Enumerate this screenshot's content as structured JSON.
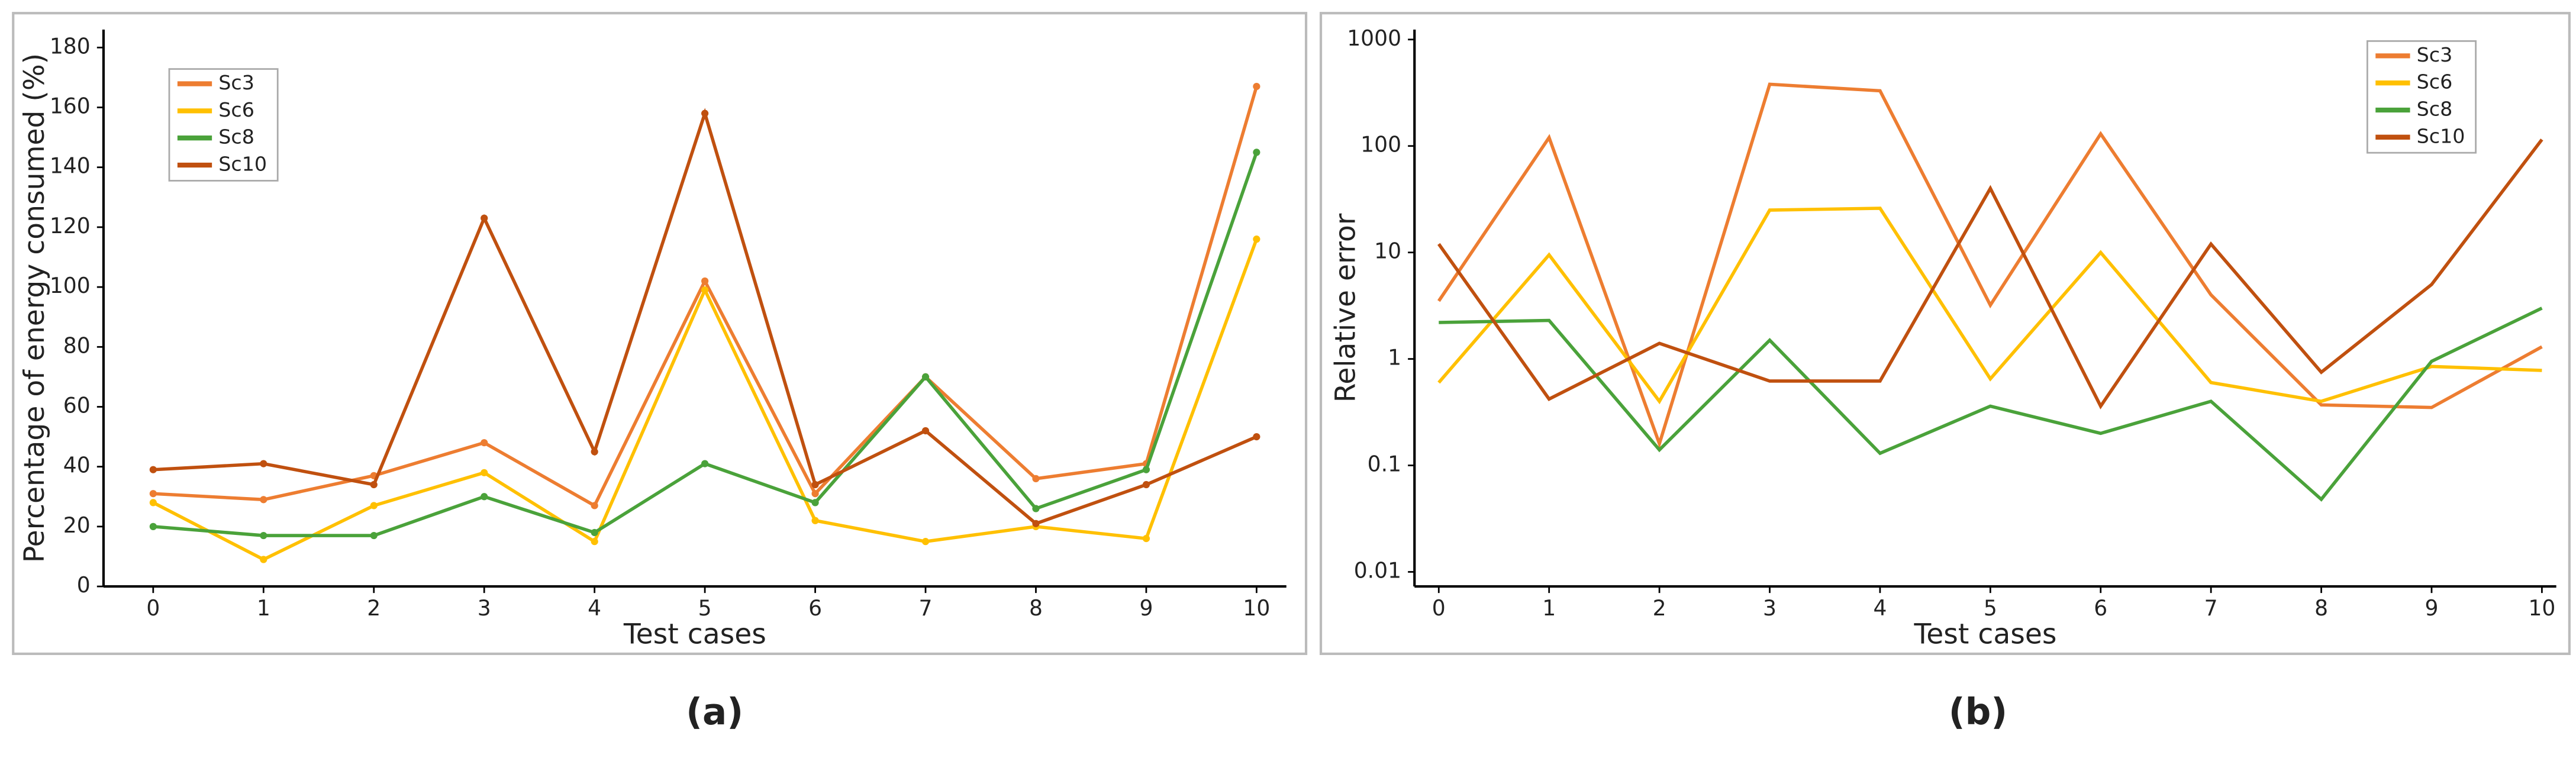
{
  "chart_data": [
    {
      "type": "line",
      "caption": "(a)",
      "x_label": "Test cases",
      "y_label": "Percentage of energy consumed (%)",
      "x": [
        0,
        1,
        2,
        3,
        4,
        5,
        6,
        7,
        8,
        9,
        10
      ],
      "xlim": [
        -0.45,
        10.27
      ],
      "xticks": [
        0,
        1,
        2,
        3,
        4,
        5,
        6,
        7,
        8,
        9,
        10
      ],
      "ylim": [
        0,
        186
      ],
      "yticks": [
        0,
        20,
        40,
        60,
        80,
        100,
        120,
        140,
        160,
        180
      ],
      "log_scale": false,
      "markers": true,
      "legend": "upper left",
      "series": [
        {
          "name": "Sc3",
          "color": "#ed7d31",
          "values": [
            31,
            29,
            37,
            48,
            27,
            102,
            31,
            70,
            36,
            41,
            167
          ]
        },
        {
          "name": "Sc6",
          "color": "#ffc000",
          "values": [
            28,
            9,
            27,
            38,
            15,
            99,
            22,
            15,
            20,
            16,
            116
          ]
        },
        {
          "name": "Sc8",
          "color": "#4aa23a",
          "values": [
            20,
            17,
            17,
            30,
            18,
            41,
            28,
            70,
            26,
            39,
            145
          ]
        },
        {
          "name": "Sc10",
          "color": "#c0500f",
          "values": [
            39,
            41,
            34,
            123,
            45,
            158,
            34,
            52,
            21,
            34,
            50
          ]
        }
      ]
    },
    {
      "type": "line",
      "caption": "(b)",
      "x_label": "Test cases",
      "y_label": "Relative error",
      "x": [
        0,
        1,
        2,
        3,
        4,
        5,
        6,
        7,
        8,
        9,
        10
      ],
      "xlim": [
        -0.22,
        10.13
      ],
      "xticks": [
        0,
        1,
        2,
        3,
        4,
        5,
        6,
        7,
        8,
        9,
        10
      ],
      "ylim": [
        0.0073,
        1240
      ],
      "yticks": [
        0.01,
        0.1,
        1,
        10,
        100,
        1000
      ],
      "log_scale": true,
      "markers": false,
      "legend": "upper right",
      "series": [
        {
          "name": "Sc3",
          "color": "#ed7d31",
          "values": [
            3.5,
            120,
            0.16,
            380,
            330,
            3.2,
            130,
            4,
            0.37,
            0.35,
            1.3
          ]
        },
        {
          "name": "Sc6",
          "color": "#ffc000",
          "values": [
            0.6,
            9.5,
            0.4,
            25,
            26,
            0.65,
            10,
            0.6,
            0.4,
            0.85,
            0.78
          ]
        },
        {
          "name": "Sc8",
          "color": "#4aa23a",
          "values": [
            2.2,
            2.3,
            0.14,
            1.5,
            0.13,
            0.36,
            0.2,
            0.4,
            0.048,
            0.95,
            3
          ]
        },
        {
          "name": "Sc10",
          "color": "#c0500f",
          "values": [
            12,
            0.42,
            1.4,
            0.62,
            0.62,
            40,
            0.36,
            12,
            0.75,
            5,
            115
          ]
        }
      ]
    }
  ]
}
